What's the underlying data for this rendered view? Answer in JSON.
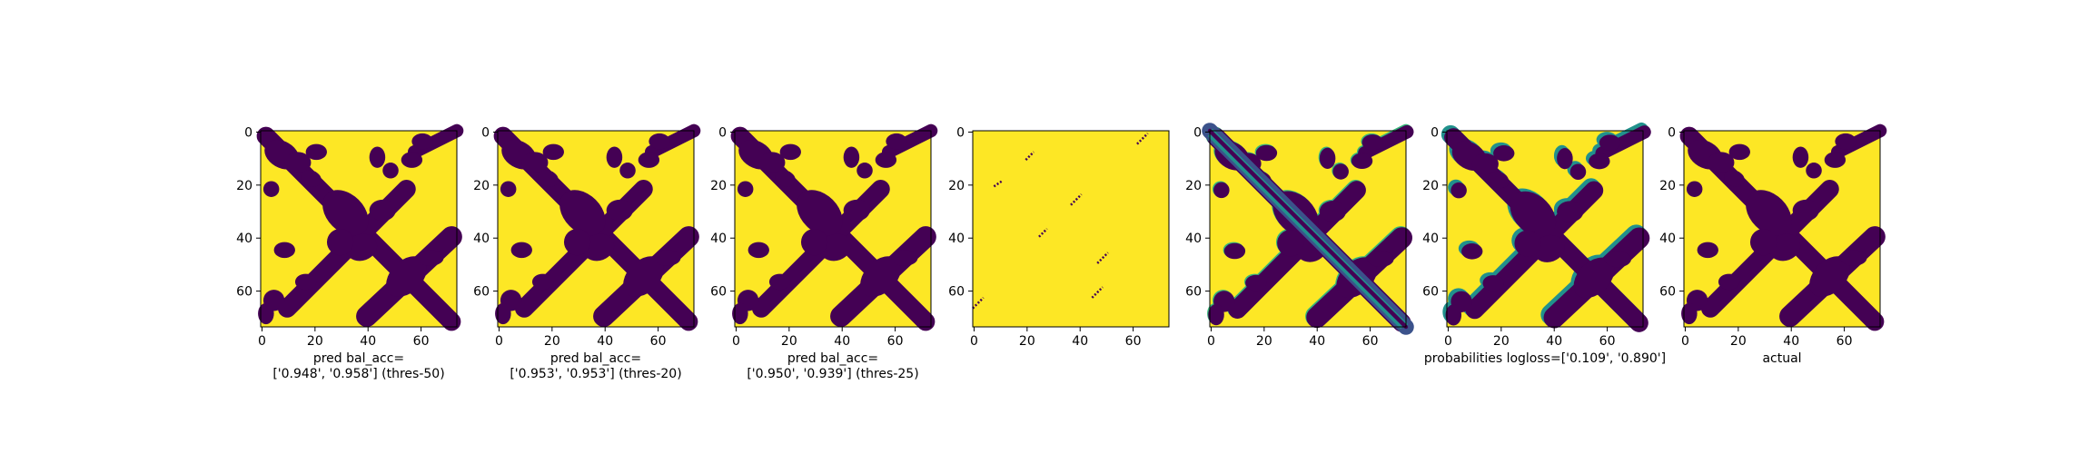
{
  "figure": {
    "background": "#ffffff"
  },
  "colors": {
    "low": "#440154",
    "high": "#fde725",
    "mid": "#21918c",
    "mid2": "#35b779",
    "mid3": "#3b528b"
  },
  "chart_data": [
    {
      "type": "heatmap",
      "kind": "binary",
      "xticks": [
        "0",
        "20",
        "40",
        "60"
      ],
      "yticks": [
        "0",
        "20",
        "40",
        "60"
      ],
      "xlim": [
        0,
        74
      ],
      "ylim": [
        74,
        0
      ],
      "xlabel": [
        "pred bal_acc=",
        "['0.948', '0.958'] (thres-50)"
      ],
      "bal_acc": [
        0.948,
        0.958
      ],
      "threshold": 50
    },
    {
      "type": "heatmap",
      "kind": "binary",
      "xticks": [
        "0",
        "20",
        "40",
        "60"
      ],
      "yticks": [
        "0",
        "20",
        "40",
        "60"
      ],
      "xlim": [
        0,
        74
      ],
      "ylim": [
        74,
        0
      ],
      "xlabel": [
        "pred bal_acc=",
        "['0.953', '0.953'] (thres-20)"
      ],
      "bal_acc": [
        0.953,
        0.953
      ],
      "threshold": 20
    },
    {
      "type": "heatmap",
      "kind": "binary",
      "xticks": [
        "0",
        "20",
        "40",
        "60"
      ],
      "yticks": [
        "0",
        "20",
        "40",
        "60"
      ],
      "xlim": [
        0,
        74
      ],
      "ylim": [
        74,
        0
      ],
      "xlabel": [
        "pred bal_acc=",
        "['0.950', '0.939'] (thres-25)"
      ],
      "bal_acc": [
        0.95,
        0.939
      ],
      "threshold": 25
    },
    {
      "type": "heatmap",
      "kind": "sparse",
      "xticks": [
        "0",
        "20",
        "40",
        "60"
      ],
      "yticks": [
        "0",
        "20",
        "40",
        "60"
      ],
      "xlim": [
        0,
        74
      ],
      "ylim": [
        74,
        0
      ],
      "xlabel": []
    },
    {
      "type": "heatmap",
      "kind": "gradient",
      "xticks": [
        "0",
        "20",
        "40",
        "60"
      ],
      "yticks": [
        "0",
        "20",
        "40",
        "60"
      ],
      "xlim": [
        0,
        74
      ],
      "ylim": [
        74,
        0
      ],
      "xlabel": []
    },
    {
      "type": "heatmap",
      "kind": "probability",
      "xticks": [
        "0",
        "20",
        "40",
        "60"
      ],
      "yticks": [
        "0",
        "20",
        "40",
        "60"
      ],
      "xlim": [
        0,
        74
      ],
      "ylim": [
        74,
        0
      ],
      "xlabel": [
        "probabilities logloss=['0.109', '0.890']"
      ],
      "logloss": [
        0.109,
        0.89
      ]
    },
    {
      "type": "heatmap",
      "kind": "actual",
      "xticks": [
        "0",
        "20",
        "40",
        "60"
      ],
      "yticks": [
        "0",
        "20",
        "40",
        "60"
      ],
      "xlim": [
        0,
        74
      ],
      "ylim": [
        74,
        0
      ],
      "xlabel": [
        "actual"
      ]
    }
  ]
}
